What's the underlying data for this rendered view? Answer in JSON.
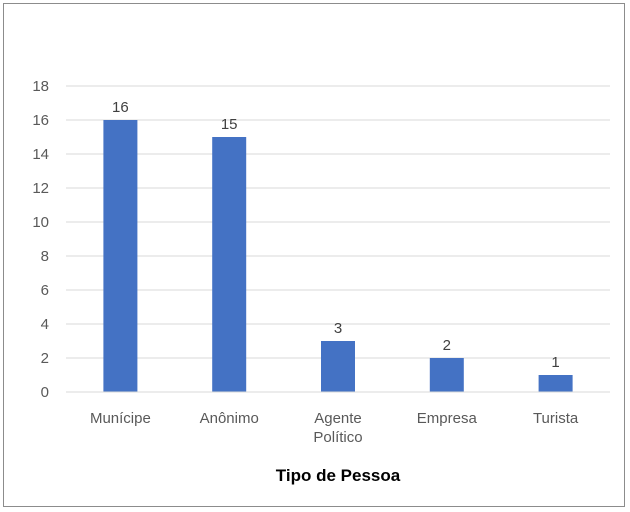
{
  "chart_data": {
    "type": "bar",
    "categories": [
      "Munícipe",
      "Anônimo",
      "Agente Político",
      "Empresa",
      "Turista"
    ],
    "category_lines": [
      [
        "Munícipe"
      ],
      [
        "Anônimo"
      ],
      [
        "Agente",
        "Político"
      ],
      [
        "Empresa"
      ],
      [
        "Turista"
      ]
    ],
    "values": [
      16,
      15,
      3,
      2,
      1
    ],
    "xlabel": "Tipo de Pessoa",
    "ylabel": "",
    "ylim": [
      0,
      18
    ],
    "yticks": [
      0,
      2,
      4,
      6,
      8,
      10,
      12,
      14,
      16,
      18
    ],
    "grid": true,
    "data_labels": true,
    "bar_color": "#4472c4",
    "grid_color": "#d9d9d9"
  }
}
